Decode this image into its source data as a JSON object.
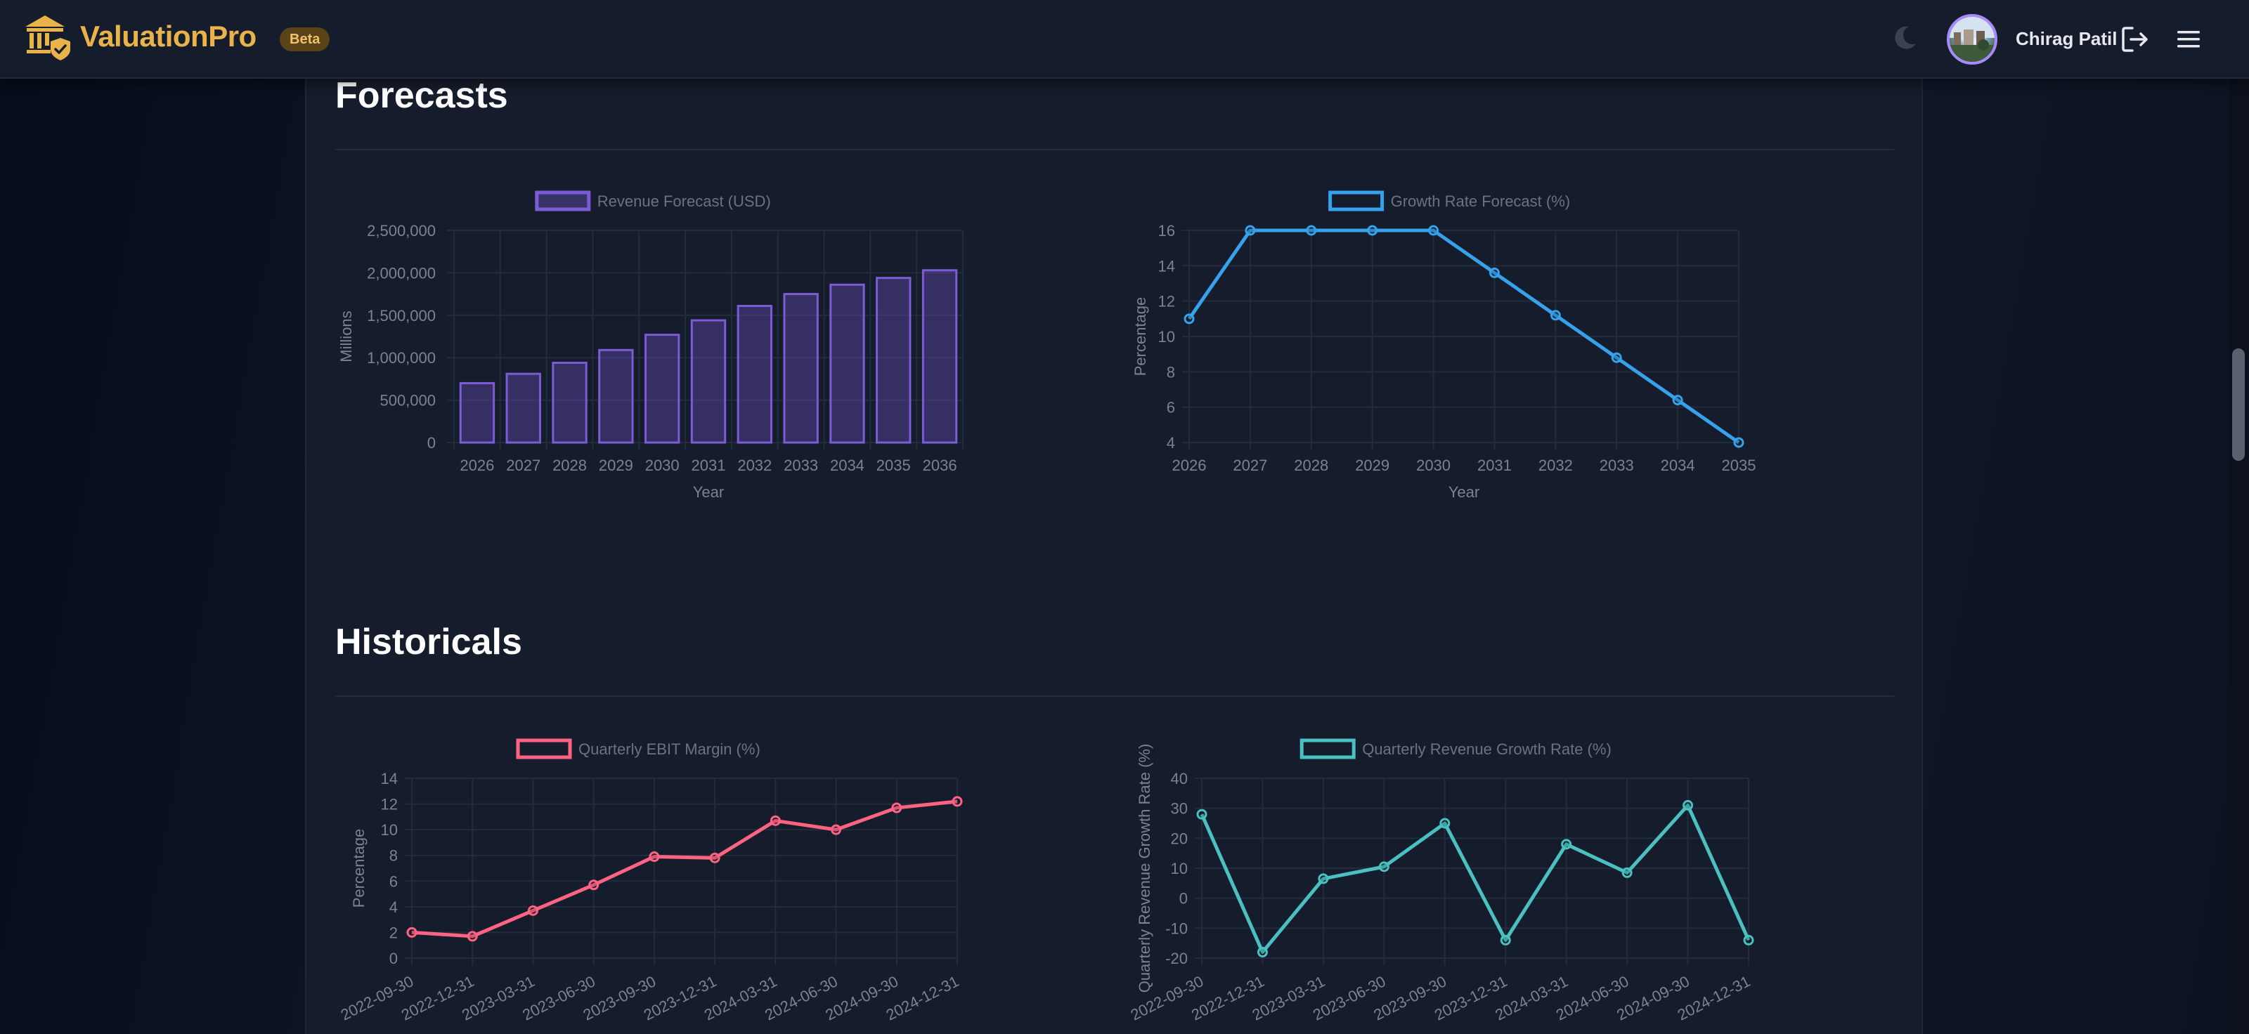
{
  "header": {
    "brand": "ValuationPro",
    "badge": "Beta",
    "user_name": "Chirag Patil",
    "icons": [
      "bank-shield-logo-icon",
      "moon-icon",
      "avatar",
      "logout-icon",
      "menu-icon"
    ]
  },
  "colors": {
    "brand": "#eab34a",
    "revenue": "#7c5cd6",
    "growth": "#36a2eb",
    "ebit": "#ff6384",
    "rev_growth": "#4bc0c0"
  },
  "sections": {
    "forecasts": "Forecasts",
    "historicals": "Historicals"
  },
  "chart_data": [
    {
      "id": "revenue",
      "type": "bar",
      "legend": "Revenue Forecast (USD)",
      "xlabel": "Year",
      "ylabel": "Millions",
      "categories": [
        "2026",
        "2027",
        "2028",
        "2029",
        "2030",
        "2031",
        "2032",
        "2033",
        "2034",
        "2035",
        "2036"
      ],
      "values": [
        700000,
        810000,
        940000,
        1090000,
        1270000,
        1440000,
        1610000,
        1750000,
        1860000,
        1940000,
        2030000
      ],
      "ylim": [
        0,
        2500000
      ],
      "yticks": [
        0,
        500000,
        1000000,
        1500000,
        2000000,
        2500000
      ],
      "ytick_labels": [
        "0",
        "500,000",
        "1,000,000",
        "1,500,000",
        "2,000,000",
        "2,500,000"
      ],
      "grid": true,
      "legend_position": "top"
    },
    {
      "id": "growth",
      "type": "line",
      "legend": "Growth Rate Forecast (%)",
      "xlabel": "Year",
      "ylabel": "Percentage",
      "categories": [
        "2026",
        "2027",
        "2028",
        "2029",
        "2030",
        "2031",
        "2032",
        "2033",
        "2034",
        "2035"
      ],
      "values": [
        11,
        16,
        16,
        16,
        16,
        13.6,
        11.2,
        8.8,
        6.4,
        4
      ],
      "ylim": [
        4,
        16
      ],
      "yticks": [
        4,
        6,
        8,
        10,
        12,
        14,
        16
      ],
      "ytick_labels": [
        "4",
        "6",
        "8",
        "10",
        "12",
        "14",
        "16"
      ],
      "grid": true,
      "legend_position": "top"
    },
    {
      "id": "ebit",
      "type": "line",
      "legend": "Quarterly EBIT Margin (%)",
      "xlabel": "",
      "ylabel": "Percentage",
      "categories": [
        "2022-09-30",
        "2022-12-31",
        "2023-03-31",
        "2023-06-30",
        "2023-09-30",
        "2023-12-31",
        "2024-03-31",
        "2024-06-30",
        "2024-09-30",
        "2024-12-31"
      ],
      "values": [
        2,
        1.7,
        3.7,
        5.7,
        7.9,
        7.8,
        10.7,
        10,
        11.7,
        12.2
      ],
      "ylim": [
        0,
        14
      ],
      "yticks": [
        0,
        2,
        4,
        6,
        8,
        10,
        12,
        14
      ],
      "ytick_labels": [
        "0",
        "2",
        "4",
        "6",
        "8",
        "10",
        "12",
        "14"
      ],
      "grid": true,
      "legend_position": "top"
    },
    {
      "id": "rev_growth",
      "type": "line",
      "legend": "Quarterly Revenue Growth Rate (%)",
      "xlabel": "",
      "ylabel": "Quarterly Revenue Growth Rate (%)",
      "categories": [
        "2022-09-30",
        "2022-12-31",
        "2023-03-31",
        "2023-06-30",
        "2023-09-30",
        "2023-12-31",
        "2024-03-31",
        "2024-06-30",
        "2024-09-30",
        "2024-12-31"
      ],
      "values": [
        28,
        -18,
        6.5,
        10.5,
        25,
        -14,
        18,
        8.5,
        31,
        -14
      ],
      "ylim": [
        -20,
        40
      ],
      "yticks": [
        -20,
        -10,
        0,
        10,
        20,
        30,
        40
      ],
      "ytick_labels": [
        "-20",
        "-10",
        "0",
        "10",
        "20",
        "30",
        "40"
      ],
      "grid": true,
      "legend_position": "top"
    }
  ]
}
